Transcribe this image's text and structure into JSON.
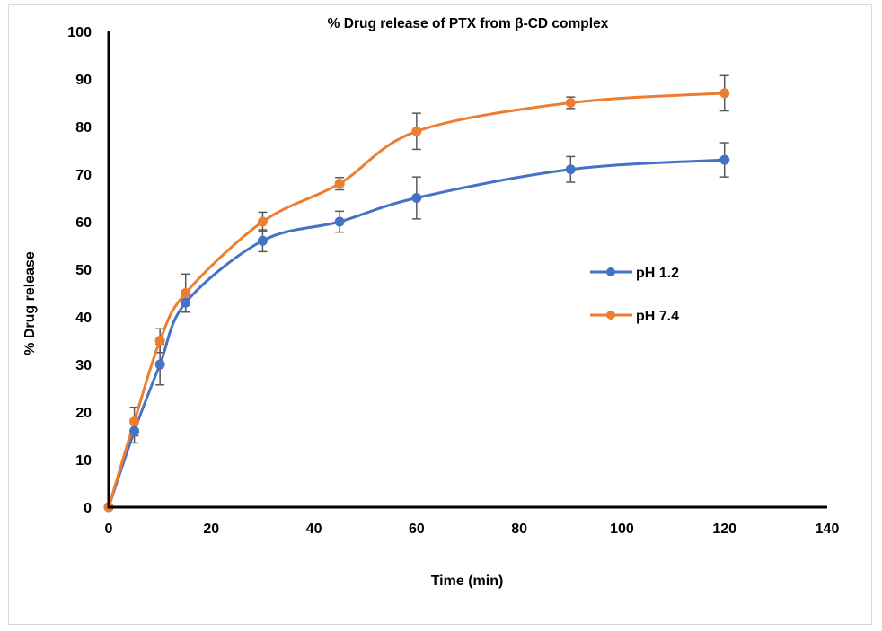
{
  "chart_data": {
    "type": "line",
    "title": "% Drug release of PTX from β-CD complex",
    "xlabel": "Time (min)",
    "ylabel": "% Drug release",
    "xlim": [
      0,
      140
    ],
    "ylim": [
      0,
      100
    ],
    "x_ticks": [
      "0",
      "20",
      "40",
      "60",
      "80",
      "100",
      "120",
      "140"
    ],
    "y_ticks": [
      "0",
      "10",
      "20",
      "30",
      "40",
      "50",
      "60",
      "70",
      "80",
      "90",
      "100"
    ],
    "grid": false,
    "smooth": true,
    "legend_position": "right",
    "x": [
      0,
      5,
      10,
      15,
      30,
      45,
      60,
      90,
      120
    ],
    "series": [
      {
        "name": "pH 1.2",
        "color": "#4472C4",
        "values": [
          0,
          16,
          30,
          43,
          56,
          60,
          65,
          71,
          73
        ],
        "error": [
          0,
          2.5,
          4.3,
          2,
          2.3,
          2.2,
          4.4,
          2.7,
          3.6
        ]
      },
      {
        "name": "pH 7.4",
        "color": "#ED7D31",
        "values": [
          0,
          18,
          35,
          45,
          60,
          68,
          79,
          85,
          87
        ],
        "error": [
          0,
          3,
          2.5,
          4,
          2,
          1.3,
          3.8,
          1.2,
          3.7
        ]
      }
    ]
  }
}
